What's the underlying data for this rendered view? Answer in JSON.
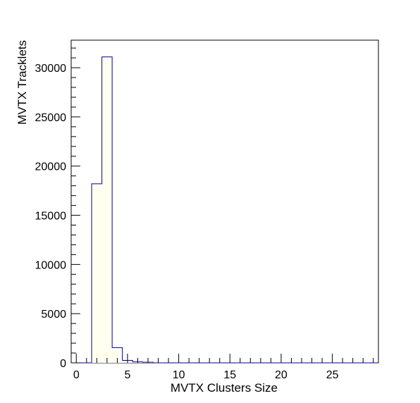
{
  "chart_data": {
    "type": "bar",
    "title": "",
    "xlabel": "MVTX Clusters Size",
    "ylabel": "MVTX Tracklets",
    "xlim": [
      -0.5,
      29.5
    ],
    "ylim": [
      0,
      32800
    ],
    "x_ticks": [
      0,
      5,
      10,
      15,
      20,
      25
    ],
    "y_ticks": [
      0,
      5000,
      10000,
      15000,
      20000,
      25000,
      30000
    ],
    "x_tick_labels": [
      "0",
      "5",
      "10",
      "15",
      "20",
      "25"
    ],
    "y_tick_labels": [
      "0",
      "5000",
      "10000",
      "15000",
      "20000",
      "25000",
      "30000"
    ],
    "bin_width": 1,
    "bin_centers": [
      0,
      1,
      2,
      3,
      4,
      5,
      6,
      7,
      8,
      9,
      10,
      11,
      12,
      13,
      14,
      15,
      16,
      17,
      18,
      19,
      20,
      21,
      22,
      23,
      24,
      25,
      26,
      27,
      28,
      29
    ],
    "values": [
      0,
      0,
      18200,
      31100,
      1550,
      250,
      100,
      60,
      0,
      0,
      0,
      0,
      0,
      0,
      0,
      0,
      0,
      0,
      0,
      0,
      0,
      0,
      0,
      0,
      0,
      0,
      0,
      0,
      0,
      0
    ],
    "line_color": "#000099",
    "fill_color": "#fffff0",
    "grid": false,
    "legend": false
  }
}
